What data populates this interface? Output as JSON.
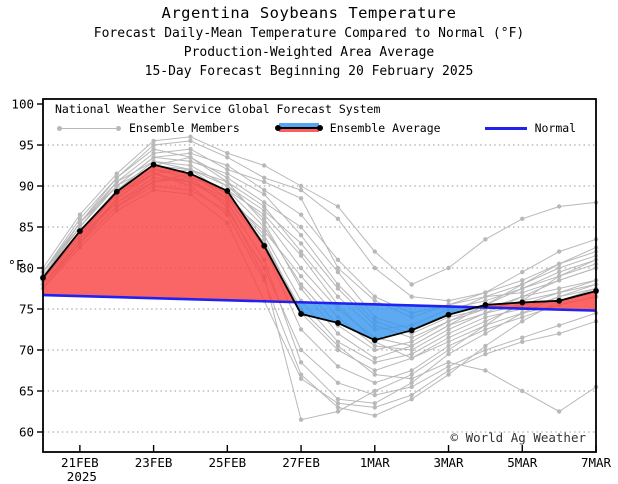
{
  "header": {
    "title": "Argentina Soybeans Temperature",
    "subtitle1": "Forecast Daily-Mean Temperature Compared to Normal (°F)",
    "subtitle2": "Production-Weighted Area Average",
    "subtitle3": "15-Day Forecast Beginning 20 February 2025"
  },
  "legend": {
    "heading": "National Weather Service Global Forecast System",
    "members_label": "Ensemble Members",
    "average_label": "Ensemble Average",
    "normal_label": "Normal"
  },
  "footer": {
    "copyright": "© World Ag Weather"
  },
  "chart_data": {
    "type": "line",
    "title": "Argentina Soybeans Temperature",
    "ylabel": "°F",
    "ylim": [
      57.56,
      100.61
    ],
    "yticks": [
      60,
      65,
      70,
      75,
      80,
      85,
      90,
      95,
      100
    ],
    "grid": "dotted horizontal at 5F intervals 60-95",
    "legend_position": "top-inside",
    "dates": [
      "20FEB",
      "21FEB",
      "22FEB",
      "23FEB",
      "24FEB",
      "25FEB",
      "26FEB",
      "27FEB",
      "28FEB",
      "1MAR",
      "2MAR",
      "3MAR",
      "4MAR",
      "5MAR",
      "6MAR",
      "7MAR"
    ],
    "x_days": [
      0,
      1,
      2,
      3,
      4,
      5,
      6,
      7,
      8,
      9,
      10,
      11,
      12,
      13,
      14,
      15
    ],
    "xtick_days": [
      1,
      3,
      5,
      7,
      9,
      11,
      13,
      15
    ],
    "xtick_labels": [
      "21FEB",
      "23FEB",
      "25FEB",
      "27FEB",
      "1MAR",
      "3MAR",
      "5MAR",
      "7MAR"
    ],
    "xtick_sublabel": {
      "day": 1,
      "text": "2025"
    },
    "ensemble_average": [
      78.8,
      84.5,
      89.3,
      92.6,
      91.5,
      89.4,
      82.7,
      74.4,
      73.3,
      71.2,
      72.4,
      74.3,
      75.5,
      75.8,
      76.0,
      77.2
    ],
    "normal": {
      "start": 76.7,
      "end": 74.8
    },
    "ensemble_members": [
      [
        79.5,
        85.5,
        90.5,
        94.0,
        94.5,
        92.0,
        90.5,
        88.5,
        80.0,
        76.0,
        74.0,
        75.5,
        76.5,
        77.0,
        78.5,
        80.0
      ],
      [
        79.0,
        85.0,
        90.0,
        93.5,
        93.0,
        91.5,
        89.0,
        84.0,
        78.0,
        73.5,
        72.0,
        74.0,
        75.0,
        76.5,
        77.5,
        78.5
      ],
      [
        78.5,
        84.0,
        89.5,
        93.0,
        92.5,
        90.0,
        86.0,
        80.0,
        75.0,
        71.5,
        70.5,
        73.0,
        74.5,
        75.5,
        76.0,
        77.0
      ],
      [
        79.0,
        84.5,
        89.0,
        92.0,
        91.0,
        89.5,
        85.0,
        78.0,
        73.0,
        70.0,
        71.0,
        73.5,
        75.0,
        76.0,
        77.0,
        78.0
      ],
      [
        78.0,
        83.5,
        88.5,
        91.5,
        92.0,
        90.5,
        87.5,
        82.0,
        76.5,
        72.5,
        73.0,
        75.0,
        76.0,
        77.5,
        79.0,
        80.5
      ],
      [
        79.5,
        85.0,
        90.0,
        92.5,
        93.5,
        91.0,
        88.0,
        85.0,
        79.5,
        74.0,
        72.5,
        74.5,
        76.5,
        78.0,
        80.0,
        81.5
      ],
      [
        78.5,
        84.0,
        88.0,
        90.5,
        91.5,
        89.0,
        84.0,
        76.0,
        71.0,
        68.5,
        69.5,
        72.0,
        74.0,
        75.0,
        76.5,
        77.5
      ],
      [
        79.0,
        85.5,
        91.0,
        95.0,
        95.5,
        93.5,
        91.0,
        89.5,
        86.0,
        80.0,
        76.5,
        76.0,
        77.0,
        78.5,
        80.5,
        82.0
      ],
      [
        80.0,
        86.5,
        91.5,
        95.5,
        96.0,
        94.0,
        92.5,
        90.0,
        87.5,
        82.0,
        78.0,
        80.0,
        83.5,
        86.0,
        87.5,
        88.0
      ],
      [
        78.0,
        83.0,
        87.5,
        90.0,
        89.5,
        87.0,
        80.0,
        70.0,
        66.0,
        64.5,
        65.5,
        68.0,
        70.0,
        71.5,
        73.0,
        74.5
      ],
      [
        77.5,
        82.5,
        87.0,
        89.5,
        89.0,
        85.5,
        76.0,
        66.5,
        63.5,
        63.0,
        64.5,
        67.5,
        69.5,
        71.0,
        72.0,
        73.5
      ],
      [
        78.5,
        84.5,
        89.5,
        92.5,
        91.5,
        88.5,
        82.5,
        72.5,
        68.0,
        66.0,
        67.5,
        70.5,
        72.5,
        74.0,
        75.5,
        76.5
      ],
      [
        79.0,
        85.0,
        90.5,
        93.0,
        92.0,
        89.0,
        83.5,
        74.5,
        70.0,
        67.5,
        69.0,
        71.5,
        73.5,
        75.5,
        77.0,
        78.5
      ],
      [
        78.0,
        83.5,
        88.0,
        91.0,
        90.5,
        88.0,
        81.0,
        68.5,
        64.0,
        63.5,
        66.0,
        69.5,
        72.0,
        74.5,
        76.5,
        78.0
      ],
      [
        79.5,
        86.0,
        91.0,
        94.5,
        93.5,
        90.5,
        85.5,
        77.5,
        72.0,
        69.0,
        70.5,
        73.0,
        75.5,
        78.0,
        80.5,
        82.5
      ],
      [
        78.5,
        84.0,
        89.0,
        92.0,
        91.0,
        87.5,
        79.0,
        61.5,
        62.5,
        65.0,
        67.0,
        70.0,
        73.0,
        76.0,
        79.0,
        81.0
      ],
      [
        79.0,
        84.5,
        89.5,
        92.5,
        92.0,
        90.0,
        87.0,
        83.0,
        77.5,
        73.0,
        71.5,
        73.5,
        75.5,
        77.5,
        79.5,
        81.0
      ],
      [
        78.0,
        83.0,
        88.5,
        91.5,
        90.0,
        86.5,
        78.5,
        67.0,
        63.0,
        62.0,
        64.0,
        67.0,
        70.5,
        73.5,
        76.0,
        77.5
      ],
      [
        79.5,
        85.5,
        90.0,
        93.5,
        94.0,
        92.5,
        89.5,
        86.5,
        81.0,
        76.5,
        74.5,
        75.5,
        77.0,
        79.5,
        82.0,
        83.5
      ],
      [
        78.5,
        84.0,
        89.0,
        91.5,
        90.5,
        88.5,
        84.5,
        79.0,
        74.0,
        70.5,
        70.0,
        72.5,
        74.5,
        76.5,
        78.5,
        80.0
      ],
      [
        77.5,
        83.0,
        87.5,
        90.5,
        91.0,
        89.5,
        86.5,
        81.5,
        75.5,
        71.0,
        69.0,
        71.0,
        73.0,
        74.5,
        75.5,
        76.5
      ],
      [
        78.5,
        84.5,
        89.0,
        92.0,
        91.5,
        89.0,
        83.0,
        75.0,
        70.5,
        67.0,
        66.5,
        68.5,
        67.5,
        65.0,
        62.5,
        65.5
      ]
    ],
    "colors": {
      "above_normal_fill": "#f94343",
      "below_normal_fill": "#3a97ef",
      "normal_line": "#2222f0",
      "average_line": "#000000",
      "member_line": "#b8b8b8",
      "grid_line": "#999999",
      "frame": "#000000"
    }
  }
}
